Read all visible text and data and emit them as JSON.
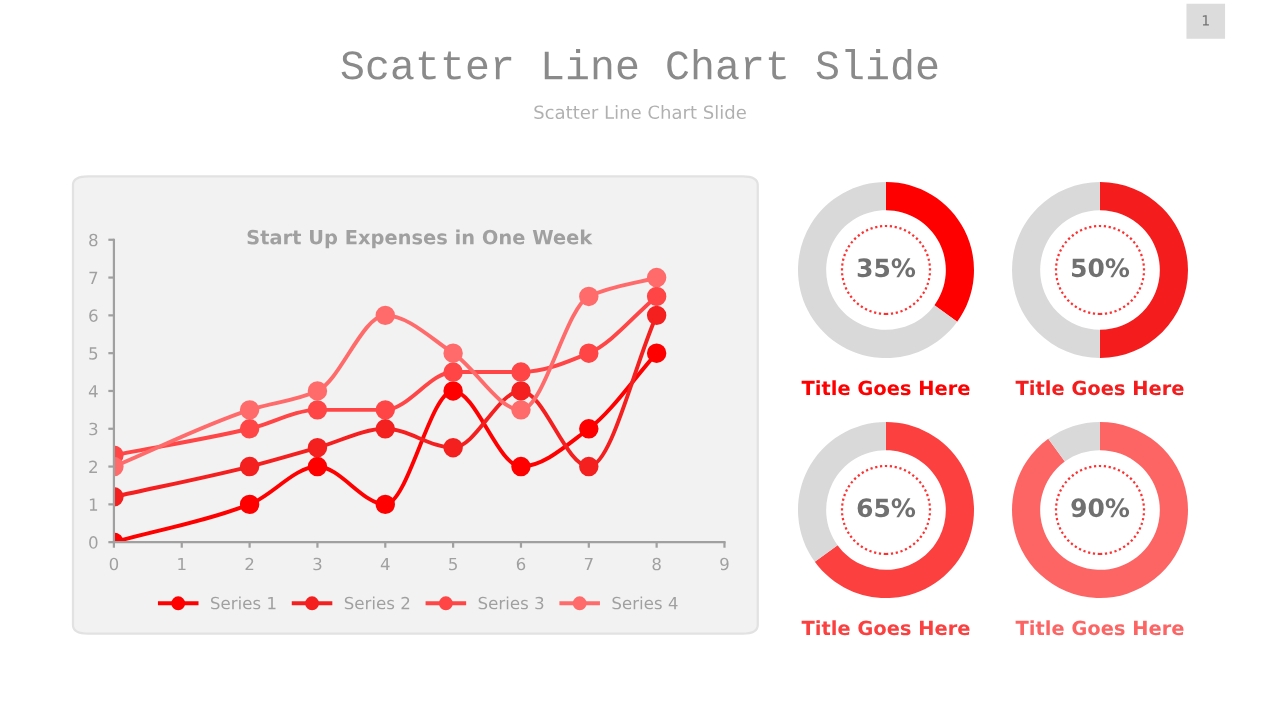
{
  "chart_data": [
    {
      "type": "other",
      "title": "Scatter Line Chart Slide",
      "subtitle": "Scatter Line Chart Slide",
      "annotations": [
        "1"
      ]
    },
    {
      "type": "line",
      "title": "Start Up Expenses in One Week",
      "x": [
        0,
        2,
        3,
        4,
        5,
        6,
        7,
        8
      ],
      "series": [
        {
          "name": "Series 1",
          "color": "#ff0000",
          "values": [
            0,
            1,
            2,
            1,
            4,
            2,
            3,
            5
          ]
        },
        {
          "name": "Series 2",
          "color": "#f42020",
          "values": [
            1.2,
            2,
            2.5,
            3,
            2.5,
            4,
            2,
            6
          ]
        },
        {
          "name": "Series 3",
          "color": "#ff4545",
          "values": [
            2.3,
            3,
            3.5,
            3.5,
            4.5,
            4.5,
            5,
            6.5
          ]
        },
        {
          "name": "Series 4",
          "color": "#ff6b6b",
          "values": [
            2,
            3.5,
            4,
            6,
            5,
            3.5,
            6.5,
            7
          ]
        }
      ],
      "xlim": [
        0,
        9
      ],
      "xticks": [
        0,
        1,
        2,
        3,
        4,
        5,
        6,
        7,
        8,
        9
      ],
      "ylim": [
        0,
        8
      ],
      "yticks": [
        0,
        1,
        2,
        3,
        4,
        5,
        6,
        7,
        8
      ],
      "grid": false,
      "legend": "bottom",
      "marker": "circle",
      "line_style": "solid"
    },
    {
      "type": "donut",
      "title": "Title Goes Here",
      "categories": [
        null,
        null
      ],
      "values": [
        35,
        65
      ],
      "colors": [
        "#ff0000",
        "#d9d9d9"
      ],
      "value_labels": [
        "35%",
        null
      ]
    },
    {
      "type": "donut",
      "title": "Title Goes Here",
      "categories": [
        null,
        null
      ],
      "values": [
        50,
        50
      ],
      "colors": [
        "#f41c1c",
        "#d9d9d9"
      ],
      "value_labels": [
        "50%",
        null
      ]
    },
    {
      "type": "donut",
      "title": "Title Goes Here",
      "categories": [
        null,
        null
      ],
      "values": [
        65,
        35
      ],
      "colors": [
        "#fc3f3f",
        "#d9d9d9"
      ],
      "value_labels": [
        "65%",
        null
      ]
    },
    {
      "type": "donut",
      "title": "Title Goes Here",
      "categories": [
        null,
        null
      ],
      "values": [
        90,
        10
      ],
      "colors": [
        "#fd6565",
        "#d9d9d9"
      ],
      "value_labels": [
        "90%",
        null
      ]
    }
  ]
}
